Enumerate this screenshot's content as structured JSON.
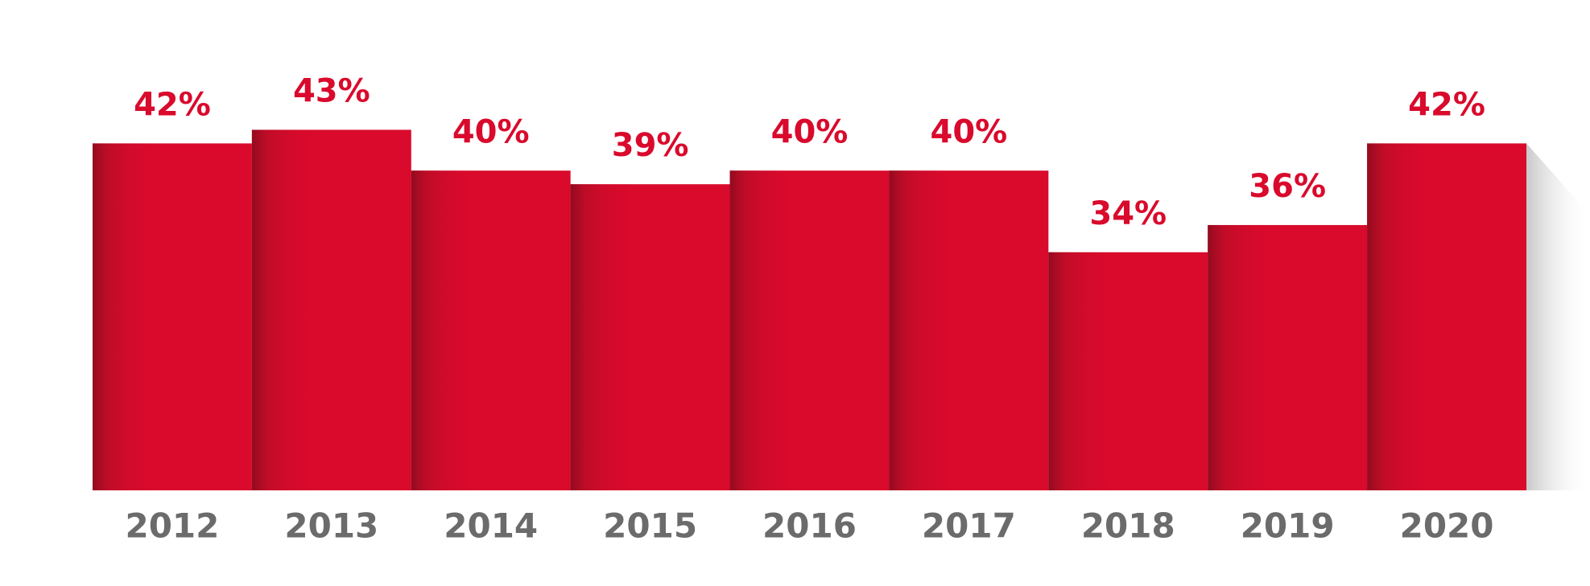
{
  "chart_data": {
    "type": "bar",
    "categories": [
      "2012",
      "2013",
      "2014",
      "2015",
      "2016",
      "2017",
      "2018",
      "2019",
      "2020"
    ],
    "values": [
      42,
      43,
      40,
      39,
      40,
      40,
      34,
      36,
      42
    ],
    "value_labels": [
      "42%",
      "43%",
      "40%",
      "39%",
      "40%",
      "40%",
      "34%",
      "36%",
      "42%"
    ],
    "color": "#d90a2c",
    "ylim": [
      16.5,
      50
    ],
    "grid": false
  }
}
